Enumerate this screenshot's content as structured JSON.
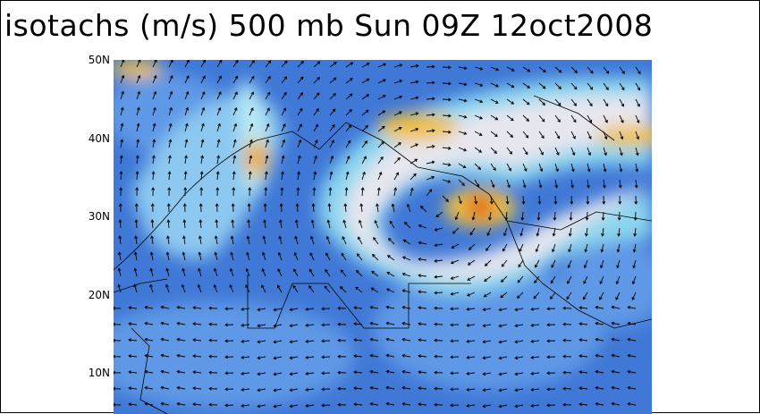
{
  "title": "isotachs (m/s) 500 mb Sun 09Z 12oct2008",
  "lat_labels": [
    "50N",
    "40N",
    "30N",
    "20N",
    "10N"
  ]
}
